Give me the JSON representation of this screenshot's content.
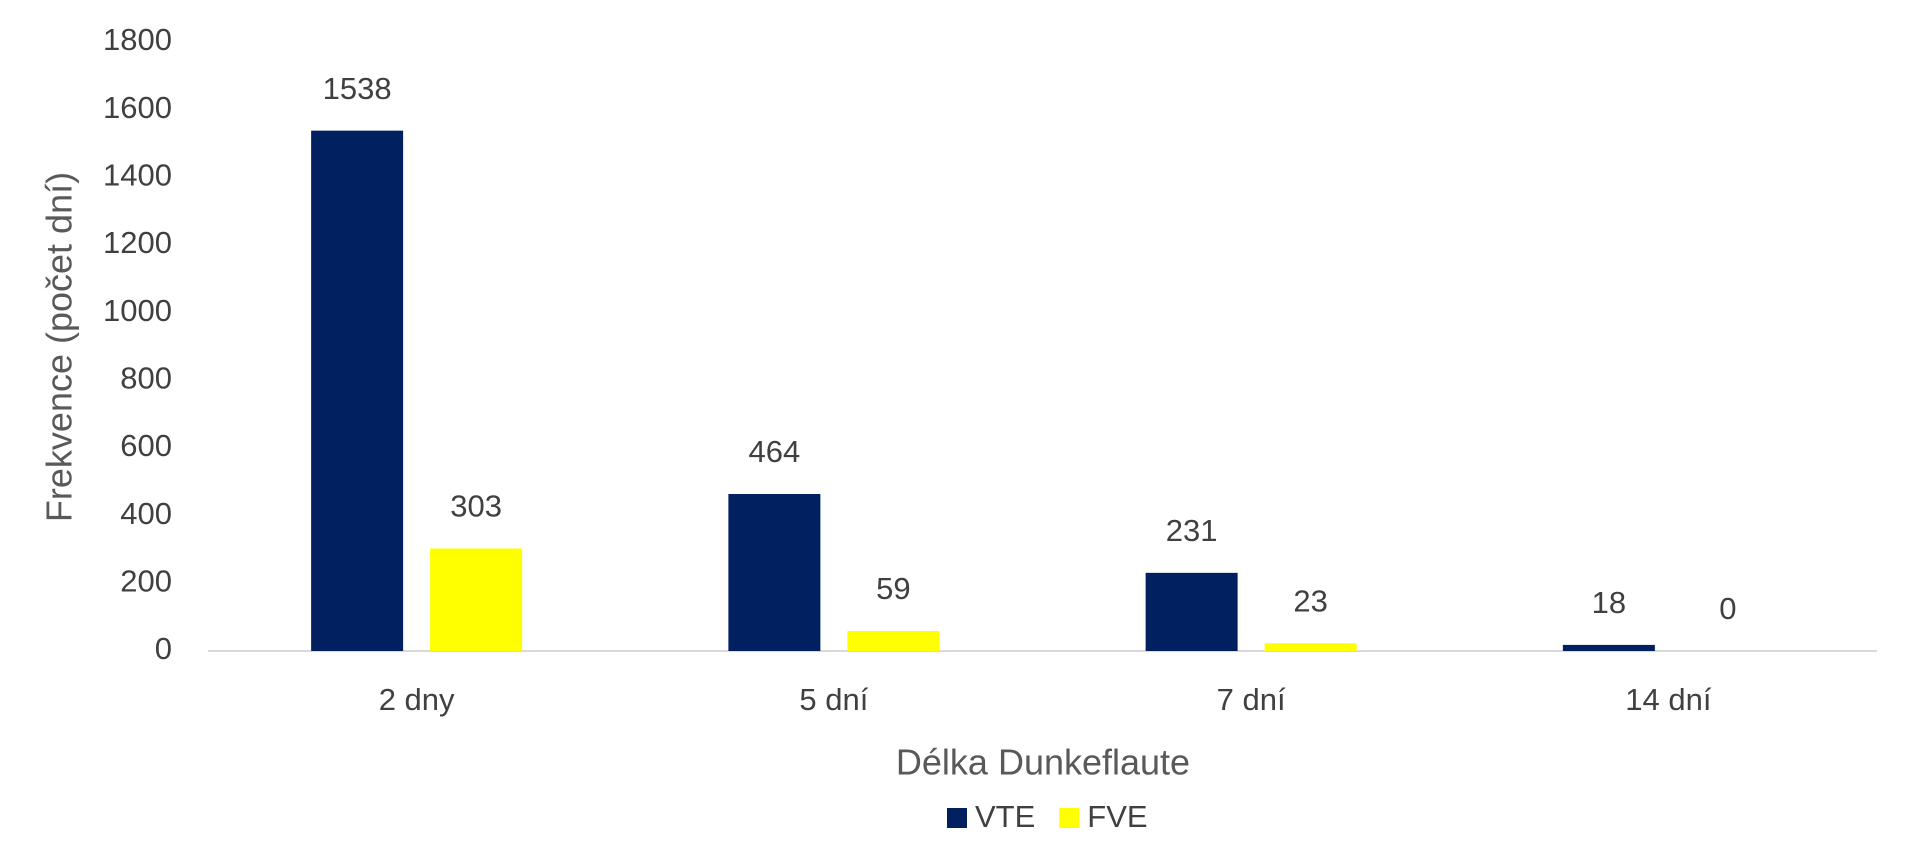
{
  "chart_data": {
    "type": "bar",
    "x_label": "Délka Dunkeflaute",
    "y_label": "Frekvence (počet dní)",
    "categories": [
      "2 dny",
      "5 dní",
      "7 dní",
      "14 dní"
    ],
    "series": [
      {
        "name": "VTE",
        "color": "#002060",
        "values": [
          1538,
          464,
          231,
          18
        ]
      },
      {
        "name": "FVE",
        "color": "#FFFF00",
        "values": [
          303,
          59,
          23,
          0
        ]
      }
    ],
    "ylim": [
      0,
      1800
    ],
    "yticks": [
      0,
      200,
      400,
      600,
      800,
      1000,
      1200,
      1400,
      1600,
      1800
    ],
    "grid": false,
    "legend": "bottom"
  }
}
